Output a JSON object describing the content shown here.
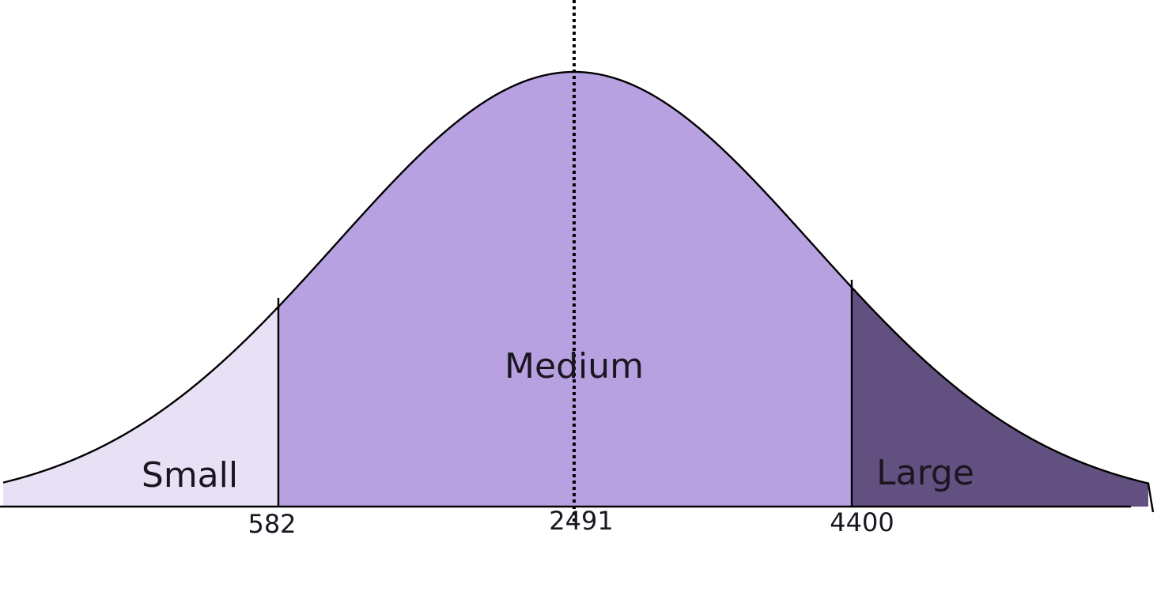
{
  "diagram": {
    "type": "normal-distribution",
    "mean_marker_style": "dotted",
    "regions": [
      {
        "name": "small",
        "label": "Small",
        "color": "#e8e0f5"
      },
      {
        "name": "medium",
        "label": "Medium",
        "color": "#b7a1e1"
      },
      {
        "name": "large",
        "label": "Large",
        "color": "#625180"
      }
    ],
    "thresholds": [
      {
        "name": "lower",
        "value": 582,
        "label": "582"
      },
      {
        "name": "mean",
        "value": 2491,
        "label": "2491"
      },
      {
        "name": "upper",
        "value": 4400,
        "label": "4400"
      }
    ],
    "line_color": "#000000"
  }
}
